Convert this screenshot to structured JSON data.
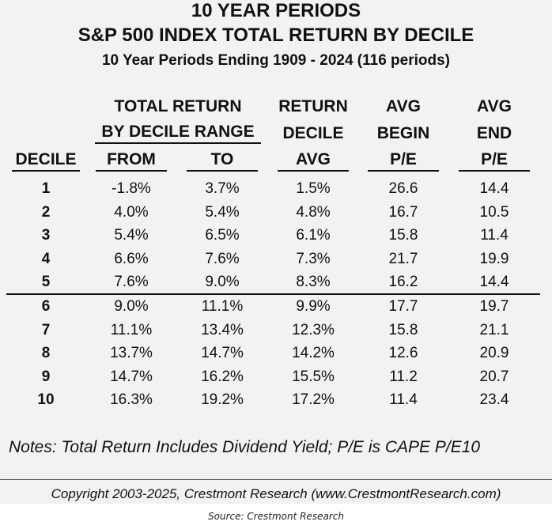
{
  "titles": {
    "line1": "10 YEAR PERIODS",
    "line2": "S&P 500 INDEX TOTAL RETURN BY DECILE",
    "subtitle": "10 Year Periods Ending 1909 - 2024 (116 periods)"
  },
  "headers": {
    "group_line1": "TOTAL RETURN",
    "group_line2": "BY DECILE RANGE",
    "decile": "DECILE",
    "from": "FROM",
    "to": "TO",
    "return_line1": "RETURN",
    "return_line2": "DECILE",
    "return_line3": "AVG",
    "begin_line1": "AVG",
    "begin_line2": "BEGIN",
    "begin_line3": "P/E",
    "end_line1": "AVG",
    "end_line2": "END",
    "end_line3": "P/E"
  },
  "chart_data": {
    "type": "table",
    "columns": [
      "DECILE",
      "FROM",
      "TO",
      "RETURN DECILE AVG",
      "AVG BEGIN P/E",
      "AVG END P/E"
    ],
    "rows": [
      [
        "1",
        "-1.8%",
        "3.7%",
        "1.5%",
        "26.6",
        "14.4"
      ],
      [
        "2",
        "4.0%",
        "5.4%",
        "4.8%",
        "16.7",
        "10.5"
      ],
      [
        "3",
        "5.4%",
        "6.5%",
        "6.1%",
        "15.8",
        "11.4"
      ],
      [
        "4",
        "6.6%",
        "7.6%",
        "7.3%",
        "21.7",
        "19.9"
      ],
      [
        "5",
        "7.6%",
        "9.0%",
        "8.3%",
        "16.2",
        "14.4"
      ],
      [
        "6",
        "9.0%",
        "11.1%",
        "9.9%",
        "17.7",
        "19.7"
      ],
      [
        "7",
        "11.1%",
        "13.4%",
        "12.3%",
        "15.8",
        "21.1"
      ],
      [
        "8",
        "13.7%",
        "14.7%",
        "14.2%",
        "12.6",
        "20.9"
      ],
      [
        "9",
        "14.7%",
        "16.2%",
        "15.5%",
        "11.2",
        "20.7"
      ],
      [
        "10",
        "16.3%",
        "19.2%",
        "17.2%",
        "11.4",
        "23.4"
      ]
    ]
  },
  "notes": "Notes: Total Return Includes Dividend Yield; P/E is CAPE P/E10",
  "copyright": "Copyright 2003-2025, Crestmont Research (www.CrestmontResearch.com)",
  "source": "Source: Crestmont Research"
}
